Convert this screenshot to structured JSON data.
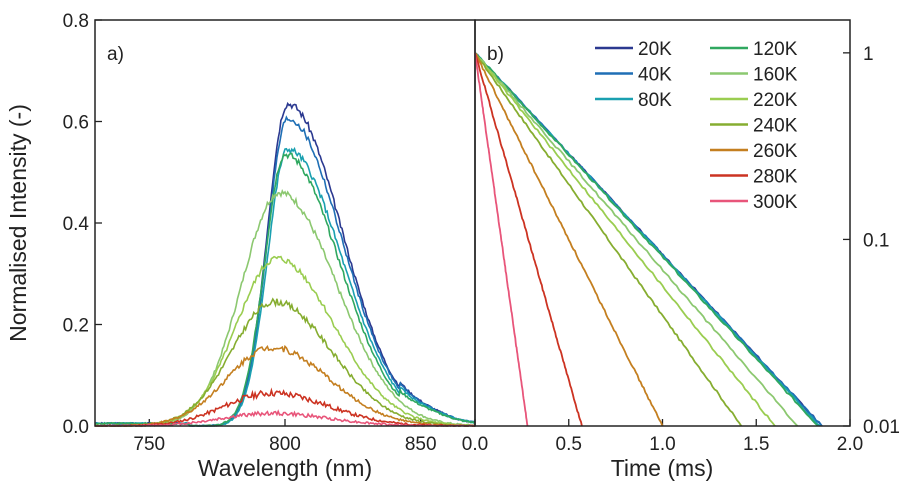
{
  "chart_data": [
    {
      "type": "line",
      "panel_label": "a)",
      "xlabel": "Wavelength (nm)",
      "ylabel": "Normalised Intensity (-)",
      "xlim": [
        730,
        870
      ],
      "ylim": [
        0,
        0.8
      ],
      "x_ticks": [
        "750",
        "800",
        "850"
      ],
      "y_ticks": [
        "0.0",
        "0.2",
        "0.4",
        "0.6",
        "0.8"
      ],
      "series": [
        {
          "name": "20K",
          "color": "#2b3990",
          "peak": 0.635,
          "peak_nm": 801
        },
        {
          "name": "40K",
          "color": "#1f6fb5",
          "peak": 0.605,
          "peak_nm": 801
        },
        {
          "name": "80K",
          "color": "#1aa0b0",
          "peak": 0.545,
          "peak_nm": 801
        },
        {
          "name": "120K",
          "color": "#30a860",
          "peak": 0.535,
          "peak_nm": 800
        },
        {
          "name": "160K",
          "color": "#8cc870",
          "peak": 0.46,
          "peak_nm": 798
        },
        {
          "name": "220K",
          "color": "#9acd50",
          "peak": 0.33,
          "peak_nm": 797
        },
        {
          "name": "240K",
          "color": "#86ad30",
          "peak": 0.245,
          "peak_nm": 796
        },
        {
          "name": "260K",
          "color": "#c47f20",
          "peak": 0.155,
          "peak_nm": 795
        },
        {
          "name": "280K",
          "color": "#cc3322",
          "peak": 0.065,
          "peak_nm": 795
        },
        {
          "name": "300K",
          "color": "#e8557a",
          "peak": 0.025,
          "peak_nm": 795
        }
      ]
    },
    {
      "type": "line",
      "panel_label": "b)",
      "xlabel": "Time (ms)",
      "yscale": "log",
      "xlim": [
        0,
        2.0
      ],
      "ylim": [
        0.01,
        1.5
      ],
      "x_ticks": [
        "0.0",
        "0.5",
        "1.0",
        "1.5",
        "2.0"
      ],
      "y_ticks": [
        "0.01",
        "0.1",
        "1"
      ],
      "legend_position": "top-right",
      "series": [
        {
          "name": "20K",
          "color": "#2b3990",
          "x": [
            0,
            1.85
          ],
          "y": [
            1,
            0.01
          ]
        },
        {
          "name": "40K",
          "color": "#1f6fb5",
          "x": [
            0,
            1.85
          ],
          "y": [
            1,
            0.01
          ]
        },
        {
          "name": "80K",
          "color": "#1aa0b0",
          "x": [
            0,
            1.84
          ],
          "y": [
            1,
            0.01
          ]
        },
        {
          "name": "120K",
          "color": "#30a860",
          "x": [
            0,
            1.83
          ],
          "y": [
            1,
            0.01
          ]
        },
        {
          "name": "160K",
          "color": "#8cc870",
          "x": [
            0,
            1.72
          ],
          "y": [
            1,
            0.01
          ]
        },
        {
          "name": "220K",
          "color": "#9acd50",
          "x": [
            0,
            1.6
          ],
          "y": [
            1,
            0.01
          ]
        },
        {
          "name": "240K",
          "color": "#86ad30",
          "x": [
            0,
            1.42
          ],
          "y": [
            1,
            0.01
          ]
        },
        {
          "name": "260K",
          "color": "#c47f20",
          "x": [
            0,
            1.0
          ],
          "y": [
            1,
            0.01
          ]
        },
        {
          "name": "280K",
          "color": "#cc3322",
          "x": [
            0,
            0.57
          ],
          "y": [
            1,
            0.01
          ]
        },
        {
          "name": "300K",
          "color": "#e8557a",
          "x": [
            0,
            0.28
          ],
          "y": [
            1,
            0.01
          ]
        }
      ]
    }
  ]
}
